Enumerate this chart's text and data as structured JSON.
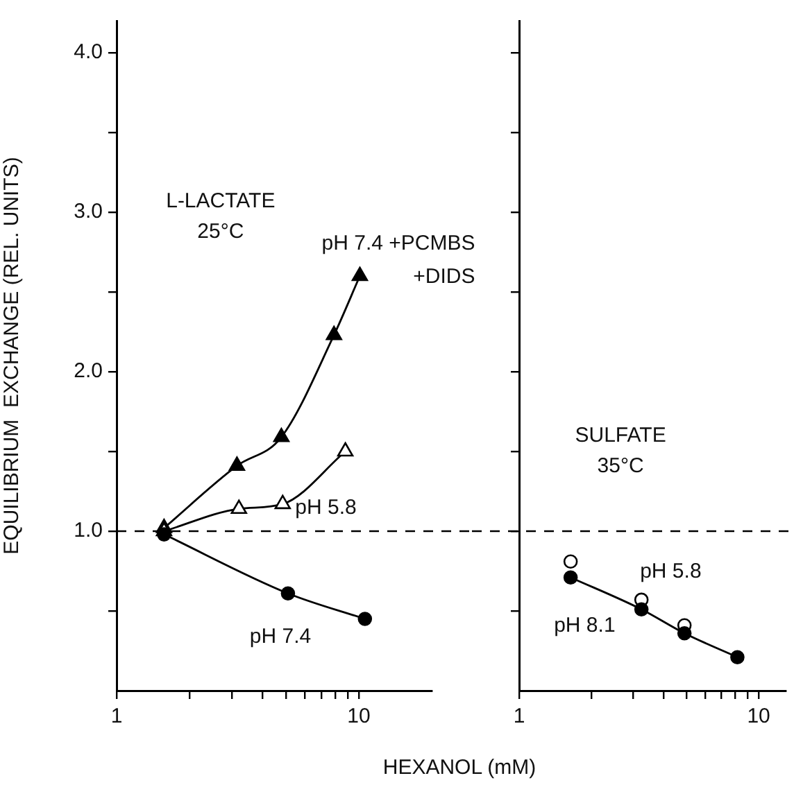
{
  "chart_data": [
    {
      "type": "line",
      "xlabel": "HEXANOL (mM)",
      "ylabel": "EQUILIBRIUM  EXCHANGE (REL. UNITS)",
      "log": "x",
      "xlim": [
        1,
        20
      ],
      "xticks": [
        {
          "value": 1,
          "label": "1"
        },
        {
          "value": 2,
          "label": null
        },
        {
          "value": 3,
          "label": null
        },
        {
          "value": 4,
          "label": null
        },
        {
          "value": 5,
          "label": null
        },
        {
          "value": 6,
          "label": null
        },
        {
          "value": 7,
          "label": null
        },
        {
          "value": 8,
          "label": null
        },
        {
          "value": 9,
          "label": null
        },
        {
          "value": 10,
          "label": "10"
        }
      ],
      "ylim": [
        0,
        4.2
      ],
      "yticks": [
        {
          "value": 0.5,
          "label": null
        },
        {
          "value": 1,
          "label": "1.0"
        },
        {
          "value": 1.5,
          "label": null
        },
        {
          "value": 2,
          "label": "2.0"
        },
        {
          "value": 2.5,
          "label": null
        },
        {
          "value": 3,
          "label": "3.0"
        },
        {
          "value": 3.5,
          "label": null
        },
        {
          "value": 4,
          "label": "4.0"
        }
      ],
      "annotations": [
        "L-LACTATE\n25°C"
      ],
      "ref_lines": [
        {
          "axis": "y",
          "value": 1,
          "line_style": "dashed"
        }
      ],
      "series": [
        {
          "name": "pH 7.4 +PCMBS +DIDS",
          "color": "#000000",
          "marker": "triangle",
          "line_style": "solid",
          "x": [
            1.57,
            3.14,
            4.79,
            7.9,
            10.1
          ],
          "values": [
            1.02,
            1.41,
            1.59,
            2.23,
            2.6
          ]
        },
        {
          "name": "pH 5.8",
          "color": "#000000",
          "marker": "triangle",
          "colors": [
            "#ffffff",
            "#ffffff",
            "#ffffff",
            "#ffffff"
          ],
          "line_style": "solid",
          "x": [
            1.57,
            3.2,
            4.85,
            8.8
          ],
          "values": [
            1.0,
            1.14,
            1.17,
            1.5
          ]
        },
        {
          "name": "pH 7.4",
          "color": "#000000",
          "marker": "circle",
          "line_style": "solid",
          "x": [
            1.57,
            5.1,
            10.6
          ],
          "values": [
            0.98,
            0.61,
            0.45
          ]
        }
      ]
    },
    {
      "type": "line",
      "log": "x",
      "xlim": [
        1,
        13
      ],
      "xticks": [
        {
          "value": 1,
          "label": "1"
        },
        {
          "value": 2,
          "label": null
        },
        {
          "value": 3,
          "label": null
        },
        {
          "value": 4,
          "label": null
        },
        {
          "value": 5,
          "label": null
        },
        {
          "value": 6,
          "label": null
        },
        {
          "value": 7,
          "label": null
        },
        {
          "value": 8,
          "label": null
        },
        {
          "value": 9,
          "label": null
        },
        {
          "value": 10,
          "label": "10"
        }
      ],
      "ylim": [
        0,
        4.2
      ],
      "yticks": [
        {
          "value": 0.5,
          "label": null
        },
        {
          "value": 1,
          "label": null
        },
        {
          "value": 1.5,
          "label": null
        },
        {
          "value": 2,
          "label": null
        },
        {
          "value": 2.5,
          "label": null
        },
        {
          "value": 3,
          "label": null
        },
        {
          "value": 3.5,
          "label": null
        },
        {
          "value": 4,
          "label": null
        }
      ],
      "tick_labels": "x",
      "annotations": [
        "SULFATE\n35°C"
      ],
      "ref_lines": [
        {
          "axis": "y",
          "value": 1,
          "line_style": "dashed"
        }
      ],
      "series": [
        {
          "name": "pH 5.8",
          "type": "scatter",
          "color": "#000000",
          "marker": "circle",
          "colors": [
            "#ffffff",
            "#ffffff",
            "#ffffff"
          ],
          "x": [
            1.64,
            3.24,
            4.9
          ],
          "values": [
            0.81,
            0.57,
            0.41
          ]
        },
        {
          "name": "pH 8.1",
          "color": "#000000",
          "marker": "circle",
          "line_style": "solid",
          "x": [
            1.64,
            3.24,
            4.9,
            8.15
          ],
          "values": [
            0.71,
            0.51,
            0.36,
            0.21
          ]
        }
      ]
    }
  ]
}
